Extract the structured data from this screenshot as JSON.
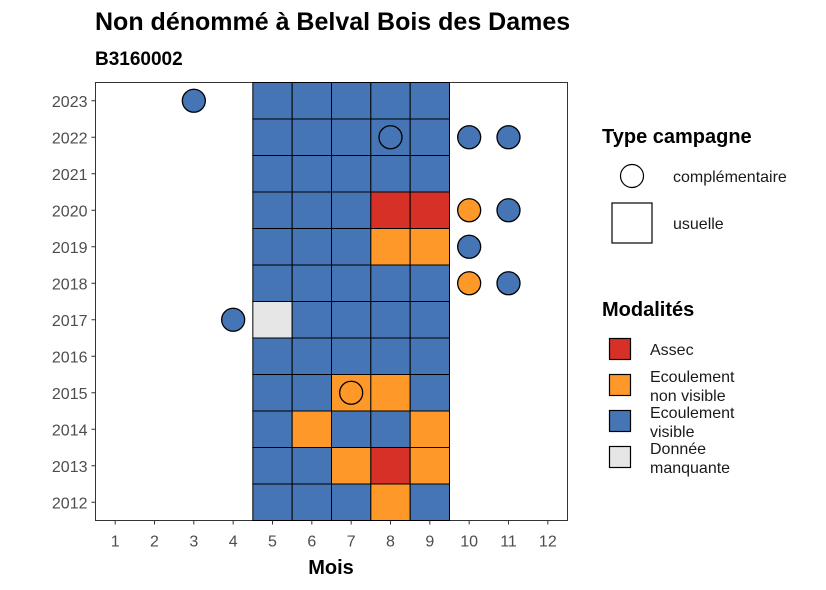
{
  "title": "Non dénommé à Belval Bois des Dames",
  "subtitle": "B3160002",
  "chart_data": {
    "type": "heatmap",
    "xlabel": "Mois",
    "ylabel": "",
    "x_ticks": [
      1,
      2,
      3,
      4,
      5,
      6,
      7,
      8,
      9,
      10,
      11,
      12
    ],
    "y_ticks": [
      2012,
      2013,
      2014,
      2015,
      2016,
      2017,
      2018,
      2019,
      2020,
      2021,
      2022,
      2023
    ],
    "xlim": [
      0.5,
      12.5
    ],
    "ylim": [
      2011.5,
      2023.5
    ],
    "colors": {
      "Assec": "#d73027",
      "Ecoulement non visible": "#fe9929",
      "Ecoulement visible": "#4575b4",
      "Donnée manquante": "#e6e6e6"
    },
    "usuelle": [
      {
        "year": 2012,
        "months": [
          "Ecoulement visible",
          "Ecoulement visible",
          "Ecoulement visible",
          "Ecoulement non visible",
          "Ecoulement visible"
        ]
      },
      {
        "year": 2013,
        "months": [
          "Ecoulement visible",
          "Ecoulement visible",
          "Ecoulement non visible",
          "Assec",
          "Ecoulement non visible"
        ]
      },
      {
        "year": 2014,
        "months": [
          "Ecoulement visible",
          "Ecoulement non visible",
          "Ecoulement visible",
          "Ecoulement visible",
          "Ecoulement non visible"
        ]
      },
      {
        "year": 2015,
        "months": [
          "Ecoulement visible",
          "Ecoulement visible",
          "Ecoulement non visible",
          "Ecoulement non visible",
          "Ecoulement visible"
        ]
      },
      {
        "year": 2016,
        "months": [
          "Ecoulement visible",
          "Ecoulement visible",
          "Ecoulement visible",
          "Ecoulement visible",
          "Ecoulement visible"
        ]
      },
      {
        "year": 2017,
        "months": [
          "Donnée manquante",
          "Ecoulement visible",
          "Ecoulement visible",
          "Ecoulement visible",
          "Ecoulement visible"
        ]
      },
      {
        "year": 2018,
        "months": [
          "Ecoulement visible",
          "Ecoulement visible",
          "Ecoulement visible",
          "Ecoulement visible",
          "Ecoulement visible"
        ]
      },
      {
        "year": 2019,
        "months": [
          "Ecoulement visible",
          "Ecoulement visible",
          "Ecoulement visible",
          "Ecoulement non visible",
          "Ecoulement non visible"
        ]
      },
      {
        "year": 2020,
        "months": [
          "Ecoulement visible",
          "Ecoulement visible",
          "Ecoulement visible",
          "Assec",
          "Assec"
        ]
      },
      {
        "year": 2021,
        "months": [
          "Ecoulement visible",
          "Ecoulement visible",
          "Ecoulement visible",
          "Ecoulement visible",
          "Ecoulement visible"
        ]
      },
      {
        "year": 2022,
        "months": [
          "Ecoulement visible",
          "Ecoulement visible",
          "Ecoulement visible",
          "Ecoulement visible",
          "Ecoulement visible"
        ]
      },
      {
        "year": 2023,
        "months": [
          "Ecoulement visible",
          "Ecoulement visible",
          "Ecoulement visible",
          "Ecoulement visible",
          "Ecoulement visible"
        ]
      }
    ],
    "usuelle_first_month": 5,
    "complementaire": [
      {
        "year": 2023,
        "month": 3,
        "modalite": "Ecoulement visible"
      },
      {
        "year": 2022,
        "month": 8,
        "modalite": "Ecoulement visible"
      },
      {
        "year": 2022,
        "month": 10,
        "modalite": "Ecoulement visible"
      },
      {
        "year": 2022,
        "month": 11,
        "modalite": "Ecoulement visible"
      },
      {
        "year": 2020,
        "month": 10,
        "modalite": "Ecoulement non visible"
      },
      {
        "year": 2020,
        "month": 11,
        "modalite": "Ecoulement visible"
      },
      {
        "year": 2019,
        "month": 10,
        "modalite": "Ecoulement visible"
      },
      {
        "year": 2018,
        "month": 10,
        "modalite": "Ecoulement non visible"
      },
      {
        "year": 2018,
        "month": 11,
        "modalite": "Ecoulement visible"
      },
      {
        "year": 2017,
        "month": 4,
        "modalite": "Ecoulement visible"
      },
      {
        "year": 2015,
        "month": 7,
        "modalite": "Ecoulement non visible"
      }
    ]
  },
  "legend_type": {
    "title": "Type campagne",
    "items": [
      {
        "shape": "circle",
        "label": "complémentaire"
      },
      {
        "shape": "square",
        "label": "usuelle"
      }
    ]
  },
  "legend_modalites": {
    "title": "Modalités",
    "items": [
      {
        "key": "Assec",
        "lines": [
          "Assec"
        ]
      },
      {
        "key": "Ecoulement non visible",
        "lines": [
          "Ecoulement",
          "non visible"
        ]
      },
      {
        "key": "Ecoulement visible",
        "lines": [
          "Ecoulement",
          "visible"
        ]
      },
      {
        "key": "Donnée manquante",
        "lines": [
          "Donnée",
          "manquante"
        ]
      }
    ]
  }
}
